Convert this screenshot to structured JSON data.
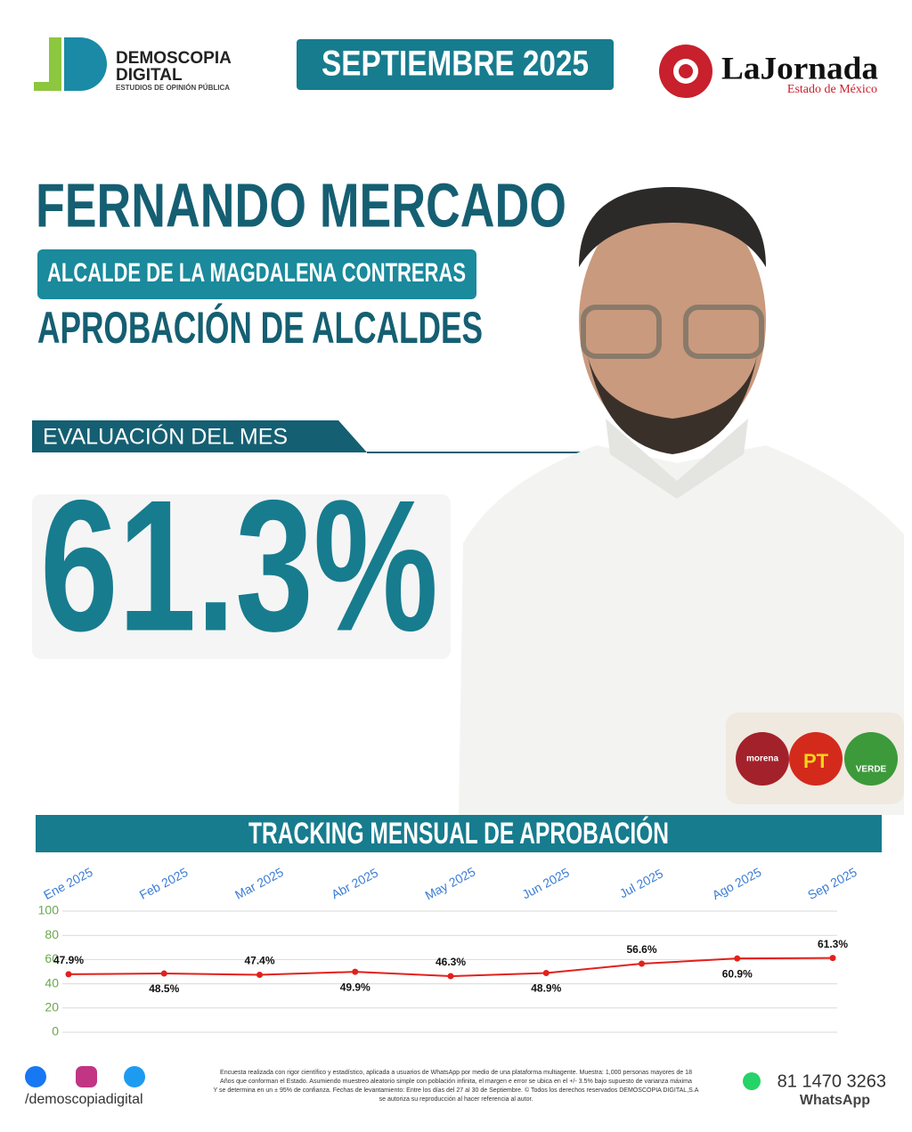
{
  "brand": {
    "name": "DEMOSCOPIA",
    "name2": "DIGITAL",
    "tagline": "ESTUDIOS DE OPINIÓN PÚBLICA"
  },
  "date": "SEPTIEMBRE 2025",
  "partner": {
    "name": "LaJornada",
    "subtitle": "Estado de México"
  },
  "person": {
    "name": "FERNANDO MERCADO",
    "role": "ALCALDE DE LA MAGDALENA CONTRERAS",
    "topic": "APROBACIÓN DE ALCALDES"
  },
  "evaluation": {
    "label": "EVALUACIÓN DEL MES",
    "value": "61.3%"
  },
  "parties": [
    "morena",
    "PT",
    "VERDE"
  ],
  "chart_data": {
    "type": "line",
    "title": "TRACKING MENSUAL DE APROBACIÓN",
    "categories": [
      "Ene 2025",
      "Feb 2025",
      "Mar 2025",
      "Abr 2025",
      "May 2025",
      "Jun 2025",
      "Jul 2025",
      "Ago 2025",
      "Sep 2025"
    ],
    "series": [
      {
        "color": "#e3201b",
        "values": [
          47.9,
          48.5,
          47.4,
          49.9,
          46.3,
          48.9,
          56.6,
          60.9,
          61.3
        ],
        "value_labels": [
          "47.9%",
          "48.5%",
          "47.4%",
          "49.9%",
          "46.3%",
          "48.9%",
          "56.6%",
          "60.9%",
          "61.3%"
        ]
      }
    ],
    "ylim": [
      0,
      100
    ],
    "yticks": [
      0,
      20,
      40,
      60,
      80,
      100
    ],
    "grid": true
  },
  "footer": {
    "social": "/demoscopiadigital",
    "disclaimer": [
      "Encuesta realizada con rigor científico y estadístico, aplicada a usuarios de WhatsApp por medio de una plataforma multiagente. Muestra: 1,000 personas mayores de 18",
      "Años que conforman el Estado. Asumiendo muestreo aleatorio simple con población infinita, el margen e error se ubica en el +/- 3.5% bajo supuesto de varianza máxima",
      "Y se determina en un ± 95% de confianza. Fechas de levantamiento: Entre los días del 27 al 30 de Septiembre. © Todos los derechos reservados DEMOSCOPIA DIGITAL,S.A",
      "se autoriza su reproducción al hacer referencia al autor."
    ],
    "phone": "81 1470 3263",
    "whatsapp": "WhatsApp"
  }
}
